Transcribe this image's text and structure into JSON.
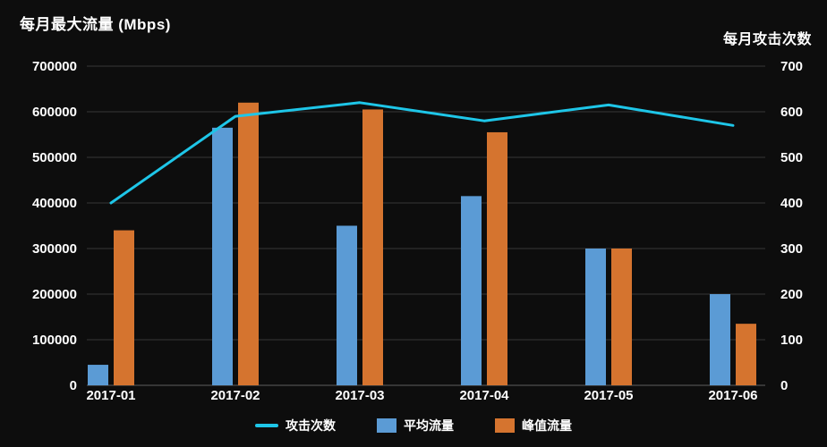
{
  "page": {
    "background": "#0D0D0D",
    "grid_color": "#383838",
    "axis_line_color": "#606060",
    "text_color": "#FFFFFF"
  },
  "chart_data": {
    "type": "combo",
    "subtype": "grouped-bar-with-line",
    "categories": [
      "2017-01",
      "2017-02",
      "2017-03",
      "2017-04",
      "2017-05",
      "2017-06"
    ],
    "series": [
      {
        "name": "攻击次数",
        "type": "line",
        "axis": "right",
        "color": "#1EC6E8",
        "values": [
          400,
          590,
          620,
          580,
          615,
          570
        ]
      },
      {
        "name": "平均流量",
        "type": "bar",
        "axis": "left",
        "color": "#5B9BD5",
        "values": [
          45000,
          565000,
          350000,
          415000,
          300000,
          200000
        ]
      },
      {
        "name": "峰值流量",
        "type": "bar",
        "axis": "left",
        "color": "#D5742F",
        "values": [
          340000,
          620000,
          605000,
          555000,
          300000,
          135000
        ]
      }
    ],
    "left_axis": {
      "title": "每月最大流量 (Mbps)",
      "min": 0,
      "max": 700000,
      "step": 100000,
      "ticks": [
        "700000",
        "600000",
        "500000",
        "400000",
        "300000",
        "200000",
        "100000",
        "0"
      ]
    },
    "right_axis": {
      "title": "每月攻击次数",
      "min": 0,
      "max": 700,
      "step": 100,
      "ticks": [
        "700",
        "600",
        "500",
        "400",
        "300",
        "200",
        "100",
        "0"
      ]
    },
    "grid": true,
    "legend_position": "bottom"
  },
  "legend": {
    "items": [
      {
        "label": "攻击次数",
        "swatch": "line"
      },
      {
        "label": "平均流量",
        "swatch": "square"
      },
      {
        "label": "峰值流量",
        "swatch": "square"
      }
    ]
  }
}
